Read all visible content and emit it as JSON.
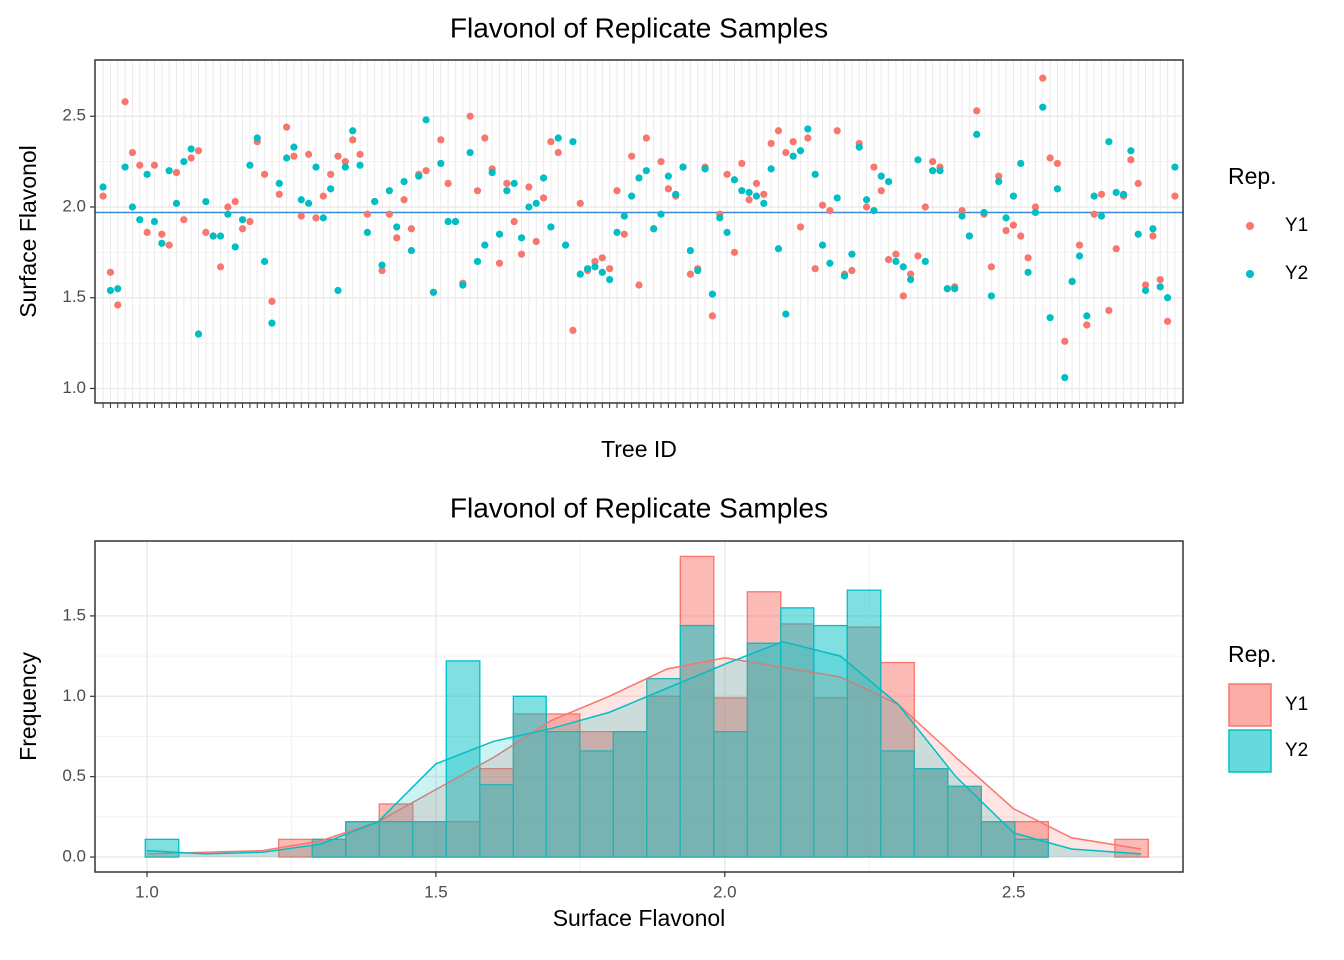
{
  "chart_data": [
    {
      "type": "dot",
      "title": "Flavonol of Replicate Samples",
      "xlabel": "Tree ID",
      "ylabel": "Surface Flavonol",
      "legend_title": "Rep.",
      "categories": [
        null,
        null,
        null,
        null,
        null,
        null,
        null,
        null,
        null,
        null,
        null,
        null,
        null,
        null,
        null,
        null,
        null,
        null,
        null,
        null,
        null,
        null,
        null,
        null,
        null,
        null,
        null,
        null,
        null,
        null,
        null,
        null,
        null,
        null,
        null,
        null,
        null,
        null,
        null,
        null,
        null,
        null,
        null,
        null,
        null,
        null,
        null,
        null,
        null,
        null,
        null,
        null,
        null,
        null,
        null,
        null,
        null,
        null,
        null,
        null,
        null,
        null,
        null,
        null,
        null,
        null,
        null,
        null,
        null,
        null,
        null,
        null,
        null,
        null,
        null,
        null,
        null,
        null,
        null,
        null,
        null,
        null,
        null,
        null,
        null,
        null,
        null,
        null,
        null,
        null,
        null,
        null,
        null,
        null,
        null,
        null,
        null,
        null,
        null,
        null,
        null,
        null,
        null,
        null,
        null,
        null,
        null,
        null,
        null,
        null,
        null,
        null,
        null,
        null,
        null,
        null,
        null,
        null,
        null,
        null,
        null,
        null,
        null,
        null,
        null,
        null,
        null,
        null,
        null,
        null,
        null,
        null,
        null,
        null,
        null,
        null,
        null,
        null,
        null,
        null,
        null,
        null,
        null,
        null,
        null,
        null,
        null
      ],
      "series": [
        {
          "name": "Y1",
          "color": "#F8766D",
          "values": [
            2.06,
            1.64,
            1.46,
            2.58,
            2.3,
            2.23,
            1.86,
            2.23,
            1.85,
            1.79,
            2.19,
            1.93,
            2.27,
            2.31,
            1.86,
            1.84,
            1.67,
            2.0,
            2.03,
            1.88,
            1.92,
            2.36,
            2.18,
            1.48,
            2.07,
            2.44,
            2.28,
            1.95,
            2.29,
            1.94,
            2.06,
            2.18,
            2.28,
            2.25,
            2.37,
            2.29,
            1.96,
            2.03,
            1.65,
            1.96,
            1.83,
            2.04,
            1.88,
            2.18,
            2.2,
            1.53,
            2.37,
            2.13,
            1.92,
            1.58,
            2.5,
            2.09,
            2.38,
            2.21,
            1.69,
            2.13,
            1.92,
            1.74,
            2.11,
            1.81,
            2.05,
            2.36,
            2.3,
            1.79,
            1.32,
            2.02,
            1.65,
            1.7,
            1.72,
            1.66,
            2.09,
            1.85,
            2.28,
            1.57,
            2.38,
            1.88,
            2.25,
            2.1,
            2.06,
            2.22,
            1.63,
            1.66,
            2.22,
            1.4,
            1.96,
            2.18,
            1.75,
            2.24,
            2.04,
            2.13,
            2.07,
            2.35,
            2.42,
            2.3,
            2.36,
            1.89,
            2.38,
            1.66,
            2.01,
            1.98,
            2.42,
            1.63,
            1.65,
            2.35,
            2.0,
            2.22,
            2.09,
            1.71,
            1.74,
            1.51,
            1.63,
            1.73,
            2.0,
            2.25,
            2.22,
            1.55,
            1.56,
            1.98,
            1.84,
            2.53,
            1.96,
            1.67,
            2.17,
            1.87,
            1.9,
            1.84,
            1.72,
            2.0,
            2.71,
            2.27,
            2.24,
            1.26,
            1.59,
            1.79,
            1.35,
            1.96,
            2.07,
            1.43,
            1.77,
            2.06,
            2.26,
            2.13,
            1.57,
            1.84,
            1.6,
            1.37,
            2.06
          ]
        },
        {
          "name": "Y2",
          "color": "#00BFC4",
          "values": [
            2.11,
            1.54,
            1.55,
            2.22,
            2.0,
            1.93,
            2.18,
            1.92,
            1.8,
            2.2,
            2.02,
            2.25,
            2.32,
            1.3,
            2.03,
            1.84,
            1.84,
            1.96,
            1.78,
            1.93,
            2.23,
            2.38,
            1.7,
            1.36,
            2.13,
            2.27,
            2.33,
            2.04,
            2.02,
            2.22,
            1.94,
            2.1,
            1.54,
            2.22,
            2.42,
            2.23,
            1.86,
            2.03,
            1.68,
            2.09,
            1.89,
            2.14,
            1.76,
            2.17,
            2.48,
            1.53,
            2.24,
            1.92,
            1.92,
            1.57,
            2.3,
            1.7,
            1.79,
            2.19,
            1.85,
            2.09,
            2.13,
            1.83,
            2.0,
            2.02,
            2.16,
            1.89,
            2.38,
            1.79,
            2.36,
            1.63,
            1.66,
            1.67,
            1.64,
            1.6,
            1.86,
            1.95,
            2.06,
            2.16,
            2.2,
            1.88,
            1.96,
            2.17,
            2.07,
            2.22,
            1.76,
            1.65,
            2.21,
            1.52,
            1.94,
            1.86,
            2.15,
            2.09,
            2.08,
            2.06,
            2.02,
            2.21,
            1.77,
            1.41,
            2.28,
            2.31,
            2.43,
            2.18,
            1.79,
            1.69,
            2.05,
            1.62,
            1.74,
            2.33,
            2.04,
            1.98,
            2.17,
            2.14,
            1.7,
            1.67,
            1.6,
            2.26,
            1.7,
            2.2,
            2.2,
            1.55,
            1.55,
            1.95,
            1.84,
            2.4,
            1.97,
            1.51,
            2.14,
            1.94,
            2.06,
            2.24,
            1.64,
            1.97,
            2.55,
            1.39,
            2.1,
            1.06,
            1.59,
            1.73,
            1.4,
            2.06,
            1.95,
            2.36,
            2.08,
            2.07,
            2.31,
            1.85,
            1.54,
            1.88,
            1.56,
            1.5,
            2.22
          ]
        }
      ],
      "hline": {
        "value": 1.97,
        "color": "#3B8BD9"
      },
      "ylim": [
        0.92,
        2.81
      ],
      "yticks": [
        {
          "value": 1,
          "label": "1.0"
        },
        1.5,
        {
          "value": 2,
          "label": "2.0"
        },
        2.5
      ],
      "grid": true
    },
    {
      "type": "histogram",
      "title": "Flavonol of Replicate Samples",
      "xlabel": "Surface Flavonol",
      "ylabel": "Frequency",
      "legend_title": "Rep.",
      "bins": [
        0.997,
        1.055,
        1.113,
        1.171,
        1.228,
        1.286,
        1.344,
        1.402,
        1.46,
        1.518,
        1.576,
        1.634,
        1.691,
        1.749,
        1.807,
        1.865,
        1.923,
        1.981,
        2.039,
        2.097,
        2.154,
        2.212,
        2.27,
        2.328,
        2.386,
        2.444,
        2.502,
        2.56,
        2.617,
        2.675,
        2.733
      ],
      "series": [
        {
          "name": "Y1",
          "color": "#F8766D",
          "values": [
            0,
            0,
            0,
            0,
            0.11,
            0.11,
            0.22,
            0.33,
            0.22,
            0.22,
            0.55,
            0.89,
            0.89,
            0.78,
            0.78,
            1.0,
            1.87,
            0.99,
            1.65,
            1.45,
            0.99,
            1.43,
            1.21,
            0.55,
            0.44,
            0.22,
            0.22,
            0,
            0,
            0.11
          ],
          "density": {
            "x": [
              1.0,
              1.2,
              1.3,
              1.4,
              1.5,
              1.6,
              1.7,
              1.8,
              1.9,
              2.0,
              2.1,
              2.2,
              2.3,
              2.4,
              2.5,
              2.6,
              2.72
            ],
            "y": [
              0.02,
              0.04,
              0.1,
              0.22,
              0.42,
              0.62,
              0.85,
              1.0,
              1.17,
              1.24,
              1.18,
              1.12,
              0.95,
              0.62,
              0.3,
              0.12,
              0.05
            ]
          }
        },
        {
          "name": "Y2",
          "color": "#00BFC4",
          "values": [
            0.11,
            0,
            0,
            0,
            0,
            0.11,
            0.22,
            0.22,
            0.22,
            1.22,
            0.45,
            1.0,
            0.78,
            0.66,
            0.78,
            1.11,
            1.44,
            0.78,
            1.33,
            1.55,
            1.44,
            1.66,
            0.66,
            0.55,
            0.44,
            0.22,
            0.11,
            0,
            0,
            0
          ],
          "density": {
            "x": [
              1.0,
              1.1,
              1.2,
              1.3,
              1.4,
              1.5,
              1.6,
              1.7,
              1.8,
              1.9,
              2.0,
              2.1,
              2.2,
              2.3,
              2.4,
              2.5,
              2.6,
              2.72
            ],
            "y": [
              0.04,
              0.02,
              0.03,
              0.08,
              0.22,
              0.58,
              0.72,
              0.8,
              0.9,
              1.05,
              1.2,
              1.34,
              1.25,
              0.95,
              0.5,
              0.15,
              0.05,
              0.02
            ]
          }
        }
      ],
      "xlim": [
        0.91,
        2.793
      ],
      "xticks": [
        {
          "value": 1,
          "label": "1.0"
        },
        1.5,
        {
          "value": 2,
          "label": "2.0"
        },
        2.5
      ],
      "ylim": [
        -0.093,
        1.966
      ],
      "yticks": [
        {
          "value": 0,
          "label": "0.0"
        },
        0.5,
        {
          "value": 1,
          "label": "1.0"
        },
        1.5
      ],
      "grid": true
    }
  ]
}
